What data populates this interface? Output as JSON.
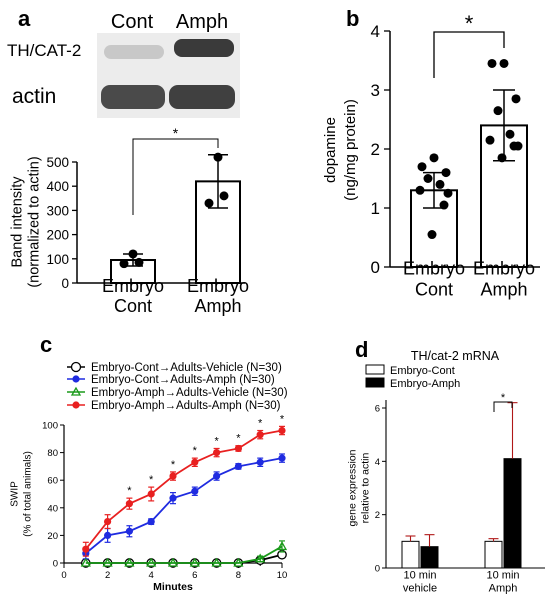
{
  "panels": {
    "a": "a",
    "b": "b",
    "c": "c",
    "d": "d"
  },
  "blot": {
    "columns": [
      "Cont",
      "Amph"
    ],
    "rows": [
      "TH/CAT-2",
      "actin"
    ]
  },
  "chart_data": [
    {
      "id": "a",
      "type": "bar",
      "categories": [
        "Embryo\nCont",
        "Embryo\nAmph"
      ],
      "values": [
        95,
        420
      ],
      "errors": [
        25,
        110
      ],
      "points": [
        [
          80,
          85,
          120
        ],
        [
          330,
          360,
          520
        ]
      ],
      "ylabel": "Band intensity\n(normalized to actin)",
      "ylim": [
        0,
        500
      ],
      "yticks": [
        0,
        100,
        200,
        300,
        400,
        500
      ],
      "significance": "*"
    },
    {
      "id": "b",
      "type": "bar",
      "categories": [
        "Embryo\nCont",
        "Embryo\nAmph"
      ],
      "values": [
        1.3,
        2.4
      ],
      "errors": [
        0.3,
        0.6
      ],
      "points": [
        [
          1.85,
          1.7,
          1.6,
          1.5,
          1.4,
          1.3,
          1.25,
          1.05,
          0.55
        ],
        [
          3.45,
          3.45,
          2.85,
          2.65,
          2.25,
          2.15,
          2.05,
          2.05,
          1.85
        ]
      ],
      "ylabel": "dopamine\n(ng/mg protein)",
      "ylim": [
        0,
        4
      ],
      "yticks": [
        0,
        1,
        2,
        3,
        4
      ],
      "significance": "*"
    },
    {
      "id": "c",
      "type": "line",
      "x": [
        1,
        2,
        3,
        4,
        5,
        6,
        7,
        8,
        9,
        10
      ],
      "xlabel": "Minutes",
      "ylabel": "SWIP\n(% of total animals)",
      "xlim": [
        0,
        10
      ],
      "xticks": [
        0,
        2,
        4,
        6,
        8,
        10
      ],
      "ylim": [
        0,
        100
      ],
      "yticks": [
        0,
        20,
        40,
        60,
        80,
        100
      ],
      "series": [
        {
          "name": "Embryo-Cont→Adults-Vehicle (N=30)",
          "color": "#000000",
          "marker": "open-circle",
          "values": [
            0,
            0,
            0,
            0,
            0,
            0,
            0,
            0,
            2,
            6
          ],
          "errors": [
            0,
            0,
            0,
            0,
            0,
            0,
            0,
            0,
            1,
            1
          ]
        },
        {
          "name": "Embryo-Cont→Adults-Amph (N=30)",
          "color": "#1f2be0",
          "marker": "circle",
          "values": [
            7,
            20,
            23,
            30,
            47,
            52,
            63,
            70,
            73,
            76
          ],
          "errors": [
            4,
            5,
            4,
            2,
            4,
            3,
            3,
            2,
            3,
            3
          ]
        },
        {
          "name": "Embryo-Amph→Adults-Vehicle (N=30)",
          "color": "#1a9a1a",
          "marker": "open-triangle",
          "values": [
            0,
            0,
            0,
            0,
            0,
            0,
            0,
            0,
            3,
            12
          ],
          "errors": [
            0,
            0,
            0,
            0,
            0,
            0,
            0,
            0,
            2,
            4
          ]
        },
        {
          "name": "Embryo-Amph→Adults-Amph (N=30)",
          "color": "#e82020",
          "marker": "circle",
          "values": [
            10,
            30,
            43,
            50,
            63,
            73,
            80,
            83,
            93,
            96
          ],
          "errors": [
            5,
            5,
            4,
            5,
            3,
            3,
            3,
            2,
            3,
            3
          ]
        }
      ],
      "significant_x": [
        3,
        4,
        5,
        6,
        7,
        8,
        9,
        10
      ],
      "significance": "*"
    },
    {
      "id": "d",
      "type": "bar",
      "title": "TH/cat-2 mRNA",
      "categories": [
        "10 min\nvehicle",
        "10 min\nAmph"
      ],
      "ylabel": "gene expression\nrelative to actin",
      "ylim": [
        0,
        6
      ],
      "yticks": [
        0,
        2,
        4,
        6
      ],
      "series": [
        {
          "name": "Embryo-Cont",
          "color": "#ffffff",
          "values": [
            1.0,
            1.0
          ],
          "errors": [
            0.2,
            0.1
          ]
        },
        {
          "name": "Embryo-Amph",
          "color": "#000000",
          "values": [
            0.8,
            4.1
          ],
          "errors": [
            0.45,
            2.1
          ]
        }
      ],
      "significance": "*"
    }
  ]
}
